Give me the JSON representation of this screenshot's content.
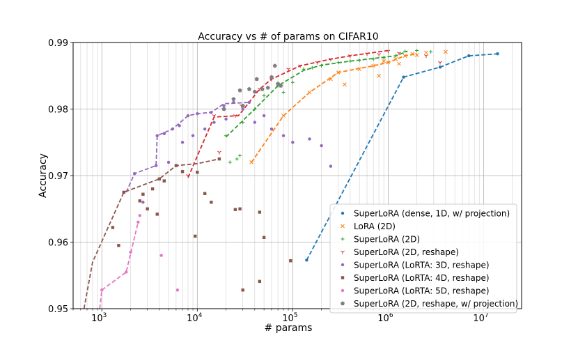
{
  "chart_data": {
    "type": "scatter",
    "title": "Accuracy vs # of params on CIFAR10",
    "xlabel": "# params",
    "ylabel": "Accuracy",
    "xscale": "log",
    "xlim": [
      500,
      25000000
    ],
    "ylim": [
      0.95,
      0.99
    ],
    "grid": true,
    "legend_position": "lower-right",
    "yticks": [
      {
        "value": 0.95,
        "label": "0.95"
      },
      {
        "value": 0.96,
        "label": "0.96"
      },
      {
        "value": 0.97,
        "label": "0.97"
      },
      {
        "value": 0.98,
        "label": "0.98"
      },
      {
        "value": 0.99,
        "label": "0.99"
      }
    ],
    "xticks": [
      {
        "value": 1000,
        "base": "10",
        "exp": "3"
      },
      {
        "value": 10000,
        "base": "10",
        "exp": "4"
      },
      {
        "value": 100000,
        "base": "10",
        "exp": "5"
      },
      {
        "value": 1000000,
        "base": "10",
        "exp": "6"
      },
      {
        "value": 10000000,
        "base": "10",
        "exp": "7"
      }
    ],
    "series": [
      {
        "name": "SuperLoRA (dense, 1D, w/ projection)",
        "color": "#1f77b4",
        "marker": "circle",
        "points": [
          [
            140000,
            0.9573
          ],
          [
            1450000,
            0.9848
          ],
          [
            3500000,
            0.9863
          ],
          [
            7000000,
            0.988
          ],
          [
            14000000,
            0.9883
          ]
        ],
        "frontier": [
          [
            140000,
            0.9573
          ],
          [
            1450000,
            0.9848
          ],
          [
            3500000,
            0.9863
          ],
          [
            7000000,
            0.988
          ],
          [
            14000000,
            0.9883
          ]
        ]
      },
      {
        "name": "LoRA (2D)",
        "color": "#ff7f0e",
        "marker": "x",
        "points": [
          [
            37000,
            0.972
          ],
          [
            80000,
            0.979
          ],
          [
            150000,
            0.9825
          ],
          [
            250000,
            0.9845
          ],
          [
            300000,
            0.9855
          ],
          [
            350000,
            0.9837
          ],
          [
            500000,
            0.986
          ],
          [
            700000,
            0.9865
          ],
          [
            800000,
            0.985
          ],
          [
            1000000,
            0.987
          ],
          [
            1200000,
            0.9875
          ],
          [
            1500000,
            0.988
          ],
          [
            1800000,
            0.9883
          ],
          [
            2000000,
            0.9881
          ],
          [
            2500000,
            0.9885
          ],
          [
            4000000,
            0.9886
          ],
          [
            1300000,
            0.9868
          ],
          [
            900000,
            0.9872
          ]
        ],
        "frontier": [
          [
            37000,
            0.972
          ],
          [
            80000,
            0.979
          ],
          [
            150000,
            0.9825
          ],
          [
            300000,
            0.9855
          ],
          [
            700000,
            0.9865
          ],
          [
            1000000,
            0.987
          ],
          [
            1500000,
            0.988
          ],
          [
            2000000,
            0.9883
          ]
        ]
      },
      {
        "name": "SuperLoRA (2D)",
        "color": "#2ca02c",
        "marker": "plus",
        "points": [
          [
            20000,
            0.976
          ],
          [
            22000,
            0.972
          ],
          [
            26000,
            0.9725
          ],
          [
            28000,
            0.973
          ],
          [
            30000,
            0.978
          ],
          [
            40000,
            0.98
          ],
          [
            50000,
            0.982
          ],
          [
            70000,
            0.9835
          ],
          [
            80000,
            0.9825
          ],
          [
            100000,
            0.984
          ],
          [
            130000,
            0.986
          ],
          [
            160000,
            0.9862
          ],
          [
            200000,
            0.9865
          ],
          [
            300000,
            0.987
          ],
          [
            400000,
            0.9872
          ],
          [
            500000,
            0.9873
          ],
          [
            700000,
            0.9875
          ],
          [
            900000,
            0.9877
          ],
          [
            1200000,
            0.988
          ],
          [
            1500000,
            0.9887
          ],
          [
            2000000,
            0.9888
          ],
          [
            2800000,
            0.9886
          ]
        ],
        "frontier": [
          [
            20000,
            0.9758
          ],
          [
            40000,
            0.98
          ],
          [
            70000,
            0.9835
          ],
          [
            130000,
            0.9858
          ],
          [
            200000,
            0.9866
          ],
          [
            400000,
            0.9872
          ],
          [
            700000,
            0.9876
          ],
          [
            1200000,
            0.988
          ],
          [
            1600000,
            0.9887
          ]
        ]
      },
      {
        "name": "SuperLoRA (2D, reshape)",
        "color": "#d62728",
        "marker": "tri_down",
        "points": [
          [
            8000,
            0.97
          ],
          [
            15000,
            0.979
          ],
          [
            25000,
            0.979
          ],
          [
            29000,
            0.9805
          ],
          [
            45000,
            0.983
          ],
          [
            60000,
            0.9845
          ],
          [
            90000,
            0.986
          ],
          [
            120000,
            0.9865
          ],
          [
            180000,
            0.987
          ],
          [
            250000,
            0.9875
          ],
          [
            400000,
            0.988
          ],
          [
            600000,
            0.9883
          ],
          [
            800000,
            0.9882
          ],
          [
            1000000,
            0.9887
          ],
          [
            1300000,
            0.9884
          ],
          [
            17000,
            0.9735
          ],
          [
            2500000,
            0.988
          ],
          [
            3500000,
            0.987
          ]
        ],
        "frontier": [
          [
            8000,
            0.9697
          ],
          [
            15000,
            0.9788
          ],
          [
            27000,
            0.979
          ],
          [
            45000,
            0.983
          ],
          [
            60000,
            0.9845
          ],
          [
            120000,
            0.9865
          ],
          [
            250000,
            0.9875
          ],
          [
            400000,
            0.988
          ],
          [
            1000000,
            0.9888
          ]
        ]
      },
      {
        "name": "SuperLoRA (LoRTA: 3D, reshape)",
        "color": "#9467bd",
        "marker": "circle",
        "points": [
          [
            2200,
            0.9703
          ],
          [
            3700,
            0.9715
          ],
          [
            3800,
            0.976
          ],
          [
            4500,
            0.9763
          ],
          [
            5500,
            0.977
          ],
          [
            6500,
            0.9775
          ],
          [
            8000,
            0.979
          ],
          [
            10000,
            0.9793
          ],
          [
            14000,
            0.9795
          ],
          [
            19000,
            0.9805
          ],
          [
            24000,
            0.981
          ],
          [
            35000,
            0.981
          ],
          [
            2700,
            0.966
          ],
          [
            3000,
            0.965
          ],
          [
            5000,
            0.972
          ],
          [
            7000,
            0.975
          ],
          [
            9000,
            0.976
          ],
          [
            12000,
            0.977
          ],
          [
            20000,
            0.9785
          ],
          [
            30000,
            0.98
          ],
          [
            40000,
            0.978
          ],
          [
            60000,
            0.977
          ],
          [
            80000,
            0.976
          ],
          [
            100000,
            0.975
          ],
          [
            150000,
            0.9755
          ],
          [
            200000,
            0.9745
          ],
          [
            250000,
            0.9714
          ],
          [
            15000,
            0.978
          ],
          [
            50000,
            0.979
          ]
        ],
        "frontier": [
          [
            1800,
            0.9675
          ],
          [
            2200,
            0.9703
          ],
          [
            3700,
            0.9715
          ],
          [
            3800,
            0.976
          ],
          [
            5500,
            0.977
          ],
          [
            8000,
            0.979
          ],
          [
            10000,
            0.9793
          ],
          [
            14000,
            0.9795
          ],
          [
            19000,
            0.9808
          ],
          [
            35000,
            0.981
          ]
        ]
      },
      {
        "name": "SuperLoRA (LoRTA: 4D, reshape)",
        "color": "#8c564b",
        "marker": "square",
        "points": [
          [
            1700,
            0.9675
          ],
          [
            2500,
            0.9662
          ],
          [
            2700,
            0.9672
          ],
          [
            3000,
            0.965
          ],
          [
            3400,
            0.968
          ],
          [
            4000,
            0.9695
          ],
          [
            4500,
            0.9692
          ],
          [
            6000,
            0.9715
          ],
          [
            7000,
            0.9706
          ],
          [
            10000,
            0.9705
          ],
          [
            12000,
            0.9673
          ],
          [
            14000,
            0.966
          ],
          [
            17000,
            0.9725
          ],
          [
            9500,
            0.9609
          ],
          [
            25000,
            0.9649
          ],
          [
            28000,
            0.965
          ],
          [
            45000,
            0.9645
          ],
          [
            50000,
            0.9607
          ],
          [
            30000,
            0.9528
          ],
          [
            45000,
            0.9541
          ],
          [
            95000,
            0.9572
          ],
          [
            1500,
            0.9595
          ],
          [
            1300,
            0.9622
          ],
          [
            3800,
            0.9642
          ]
        ],
        "frontier": [
          [
            650,
            0.95
          ],
          [
            800,
            0.957
          ],
          [
            1700,
            0.9675
          ],
          [
            4000,
            0.9695
          ],
          [
            6000,
            0.9715
          ],
          [
            10000,
            0.9718
          ],
          [
            17000,
            0.9725
          ]
        ]
      },
      {
        "name": "SuperLoRA (LoRTA: 5D, reshape)",
        "color": "#e377c2",
        "marker": "circle",
        "points": [
          [
            1000,
            0.9528
          ],
          [
            1800,
            0.9555
          ],
          [
            2400,
            0.963
          ],
          [
            4200,
            0.958
          ],
          [
            6200,
            0.9528
          ],
          [
            2000,
            0.9585
          ],
          [
            2500,
            0.964
          ]
        ],
        "frontier": [
          [
            950,
            0.95
          ],
          [
            1000,
            0.9528
          ],
          [
            1800,
            0.9555
          ],
          [
            2400,
            0.963
          ]
        ]
      },
      {
        "name": "SuperLoRA (2D, reshape, w/ projection)",
        "color": "#7f7f7f",
        "marker": "pentagon",
        "points": [
          [
            28000,
            0.9828
          ],
          [
            35000,
            0.983
          ],
          [
            40000,
            0.9826
          ],
          [
            42000,
            0.9845
          ],
          [
            48000,
            0.983
          ],
          [
            60000,
            0.9848
          ],
          [
            65000,
            0.9865
          ],
          [
            75000,
            0.9835
          ],
          [
            30000,
            0.9805
          ],
          [
            19000,
            0.98
          ],
          [
            24000,
            0.9815
          ],
          [
            70000,
            0.9838
          ],
          [
            55000,
            0.9832
          ]
        ]
      }
    ]
  }
}
